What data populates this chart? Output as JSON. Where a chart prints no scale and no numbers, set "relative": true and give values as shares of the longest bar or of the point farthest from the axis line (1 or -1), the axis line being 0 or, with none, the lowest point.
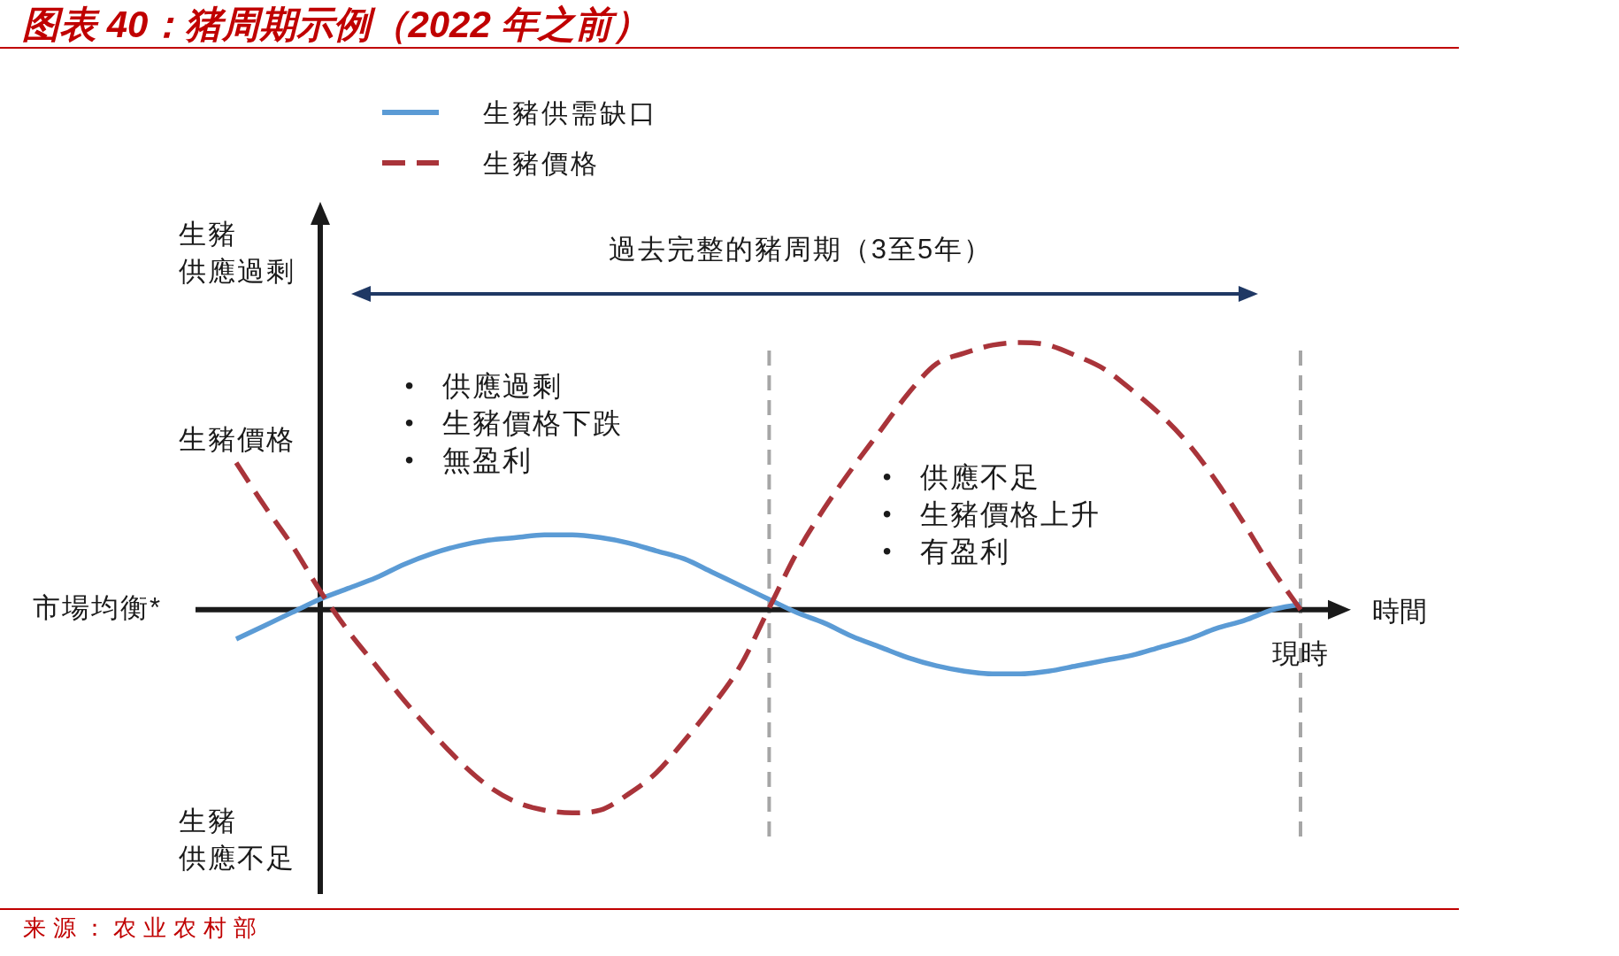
{
  "chart_data": {
    "type": "line",
    "title": "图表 40：猪周期示例（2022 年之前）",
    "xlabel": "時間",
    "relative": true,
    "legend": "top left",
    "categories": [
      null,
      null,
      null,
      null,
      null,
      null,
      null,
      null,
      null,
      null,
      null,
      null,
      null,
      null,
      null,
      null,
      null,
      null,
      null,
      null,
      null,
      null,
      null,
      null,
      null,
      null,
      null,
      null,
      null,
      null,
      null,
      null,
      null,
      null,
      null,
      null,
      null,
      null,
      null
    ],
    "series": [
      {
        "name": "生豬供需缺口",
        "color": "#5b9bd5",
        "line_style": "solid",
        "values": [
          -0.11,
          -0.06,
          -0.01,
          0.04,
          0.08,
          0.12,
          0.17,
          0.21,
          0.24,
          0.26,
          0.27,
          0.28,
          0.28,
          0.27,
          0.25,
          0.22,
          0.19,
          0.14,
          0.09,
          0.04,
          -0.01,
          -0.05,
          -0.1,
          -0.14,
          -0.18,
          -0.21,
          -0.23,
          -0.24,
          -0.24,
          -0.23,
          -0.21,
          -0.19,
          -0.17,
          -0.14,
          -0.11,
          -0.07,
          -0.04,
          0.0,
          0.02
        ]
      },
      {
        "name": "生豬價格",
        "color": "#a9343a",
        "line_style": "dashed",
        "values": [
          0.55,
          0.39,
          0.24,
          0.07,
          -0.08,
          -0.21,
          -0.34,
          -0.46,
          -0.57,
          -0.66,
          -0.72,
          -0.75,
          -0.76,
          -0.75,
          -0.69,
          -0.61,
          -0.49,
          -0.36,
          -0.21,
          0,
          0.21,
          0.38,
          0.53,
          0.67,
          0.81,
          0.92,
          0.96,
          0.99,
          1,
          0.99,
          0.95,
          0.9,
          0.82,
          0.73,
          0.62,
          0.48,
          0.32,
          0.15,
          0
        ]
      }
    ],
    "annotations": [
      "生豬",
      "供應過剩",
      "生豬價格",
      "生豬",
      "供應不足",
      "市場均衡*",
      "過去完整的豬周期（3至5年）",
      "• 供應過剩",
      "• 生豬價格下跌",
      "• 無盈利",
      "• 供應不足",
      "• 生豬價格上升",
      "• 有盈利",
      "現時",
      "来源：农业农村部"
    ]
  }
}
